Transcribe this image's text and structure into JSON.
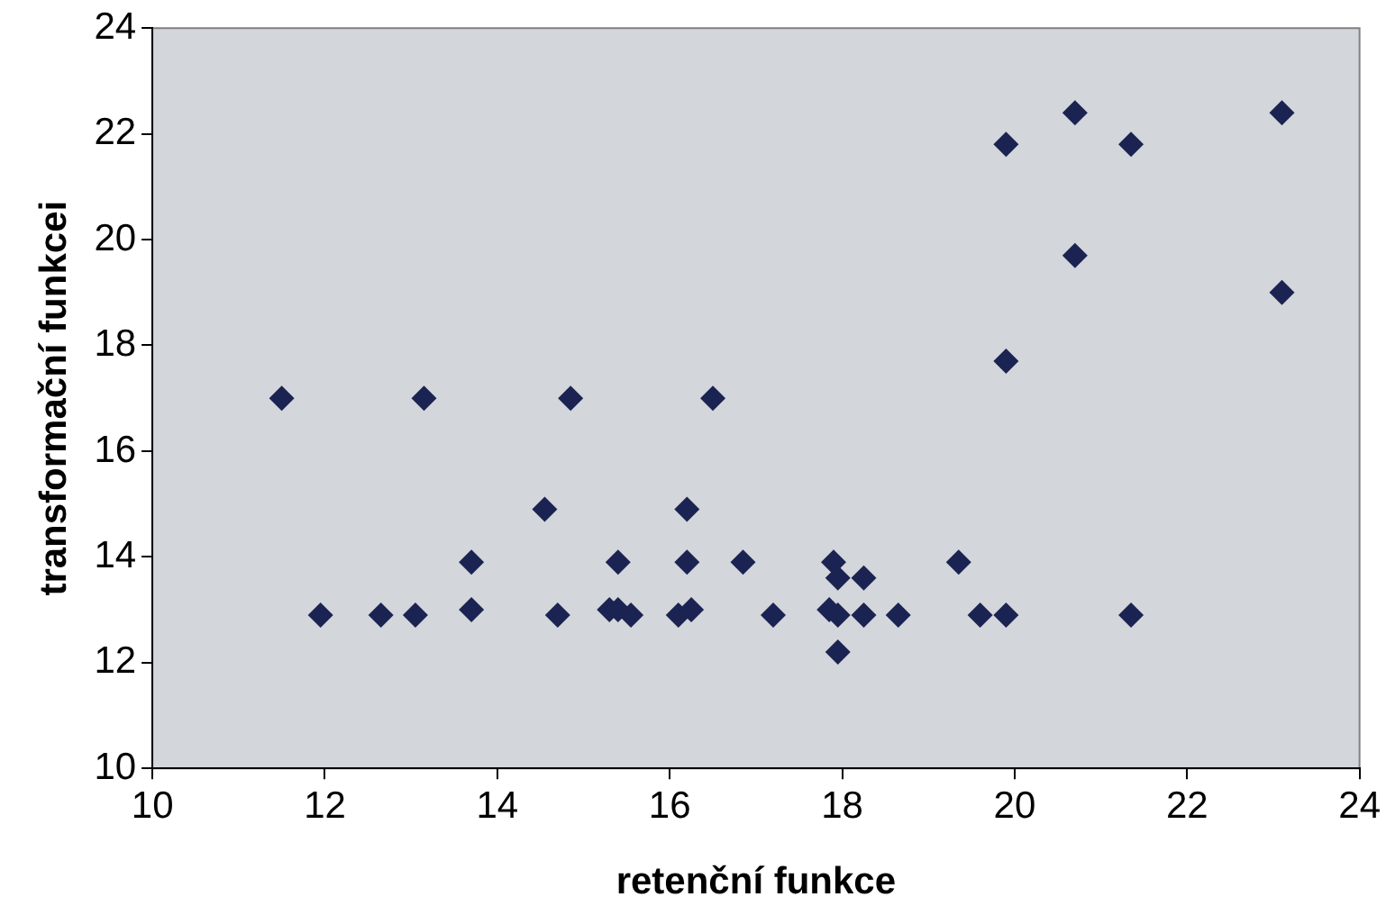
{
  "chart_data": {
    "type": "scatter",
    "xlabel": "retenční funkce",
    "ylabel": "transformační funkcei",
    "marker": "diamond",
    "grid": false,
    "legend": false,
    "xlim": [
      10,
      24
    ],
    "xticks": [
      10,
      12,
      14,
      16,
      18,
      20,
      22,
      24
    ],
    "ylim": [
      10,
      24
    ],
    "yticks": [
      10,
      12,
      14,
      16,
      18,
      20,
      22,
      24
    ],
    "x": [
      11.5,
      13.15,
      14.85,
      16.5,
      14.55,
      16.2,
      13.7,
      15.4,
      16.2,
      16.85,
      11.95,
      12.65,
      13.05,
      13.7,
      14.7,
      15.3,
      15.55,
      15.4,
      16.1,
      16.25,
      19.9,
      17.9,
      17.95,
      18.25,
      19.35,
      17.2,
      17.85,
      17.95,
      18.25,
      18.65,
      19.6,
      19.9,
      21.35,
      17.95,
      20.7,
      19.9,
      21.35,
      23.1,
      20.7,
      23.1
    ],
    "series": [
      {
        "color": "#1b2352",
        "values": [
          17,
          17,
          17,
          17,
          14.9,
          14.9,
          13.9,
          13.9,
          13.9,
          13.9,
          12.9,
          12.9,
          12.9,
          13,
          12.9,
          13,
          12.9,
          13,
          12.9,
          13,
          17.7,
          13.9,
          13.6,
          13.6,
          13.9,
          12.9,
          13,
          12.9,
          12.9,
          12.9,
          12.9,
          12.9,
          12.9,
          12.2,
          22.4,
          21.8,
          21.8,
          22.4,
          19.7,
          19
        ]
      }
    ]
  }
}
